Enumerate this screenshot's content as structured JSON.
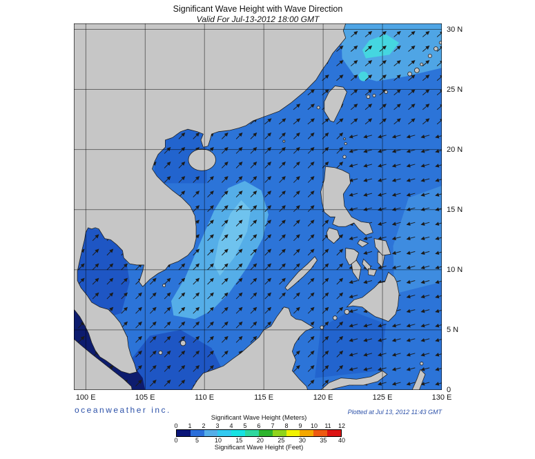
{
  "header": {
    "title": "Significant Wave Height with Wave Direction",
    "subtitle": "Valid For Jul-13-2012 18:00 GMT"
  },
  "footer": {
    "credit": "oceanweather inc.",
    "plotted": "Plotted at Jul 13, 2012 11:43 GMT"
  },
  "map": {
    "extent": {
      "lon_min": 99,
      "lon_max": 130,
      "lat_min": 0,
      "lat_max": 30.5
    },
    "lat_ticks": [
      {
        "label": "30 N",
        "value": 30
      },
      {
        "label": "25 N",
        "value": 25
      },
      {
        "label": "20 N",
        "value": 20
      },
      {
        "label": "15 N",
        "value": 15
      },
      {
        "label": "10 N",
        "value": 10
      },
      {
        "label": "5 N",
        "value": 5
      },
      {
        "label": "0",
        "value": 0
      }
    ],
    "lon_ticks": [
      {
        "label": "100 E",
        "value": 100
      },
      {
        "label": "105 E",
        "value": 105
      },
      {
        "label": "110 E",
        "value": 110
      },
      {
        "label": "115 E",
        "value": 115
      },
      {
        "label": "120 E",
        "value": 120
      },
      {
        "label": "125 E",
        "value": 125
      },
      {
        "label": "130 E",
        "value": 130
      }
    ],
    "palette": {
      "base": "#2C74D8",
      "light": "#55AEE8",
      "lighter": "#6FC3EE",
      "pacific_light": "#3E8CE0",
      "ne_light": "#4FA5E5",
      "cyan_patch": "#45D6E0",
      "dark": "#1E56C4",
      "subtle_dark": "#2264CE",
      "navy": "#0D1C6E",
      "land": "#C6C6C6",
      "coast": "#1F1F1F",
      "grid": "#000000",
      "arrow": "#1B1B1B"
    },
    "wave_direction": {
      "default_deg": 45,
      "grid_step_deg": 1.21,
      "regions": [
        {
          "name": "pacific-east-of-philippines",
          "lon_min": 121.5,
          "lon_max": 130,
          "lat_min": 0,
          "lat_max": 21.5,
          "dir_deg": 195
        },
        {
          "name": "east-china-sea-northeast",
          "lon_min": 113,
          "lon_max": 130,
          "lat_min": 21.5,
          "lat_max": 30.5,
          "dir_deg": 40
        },
        {
          "name": "south-china-sea",
          "lon_min": 99,
          "lon_max": 121.5,
          "lat_min": 0,
          "lat_max": 21.5,
          "dir_deg": 45
        }
      ]
    }
  },
  "colorbar": {
    "meters_title": "Significant Wave Height (Meters)",
    "feet_title": "Significant Wave Height (Feet)",
    "meters_ticks": [
      0,
      1,
      2,
      3,
      4,
      5,
      6,
      7,
      8,
      9,
      10,
      11,
      12
    ],
    "feet_ticks": [
      0,
      5,
      10,
      15,
      20,
      25,
      30,
      35,
      40
    ],
    "feet_max": 39.3701,
    "colors": [
      "#0A1578",
      "#2B6FDA",
      "#55AEE8",
      "#33C9F0",
      "#17E2E2",
      "#2ED89E",
      "#2DB42D",
      "#90D41C",
      "#F2F200",
      "#F5A800",
      "#EE5A12",
      "#DC1414"
    ]
  }
}
